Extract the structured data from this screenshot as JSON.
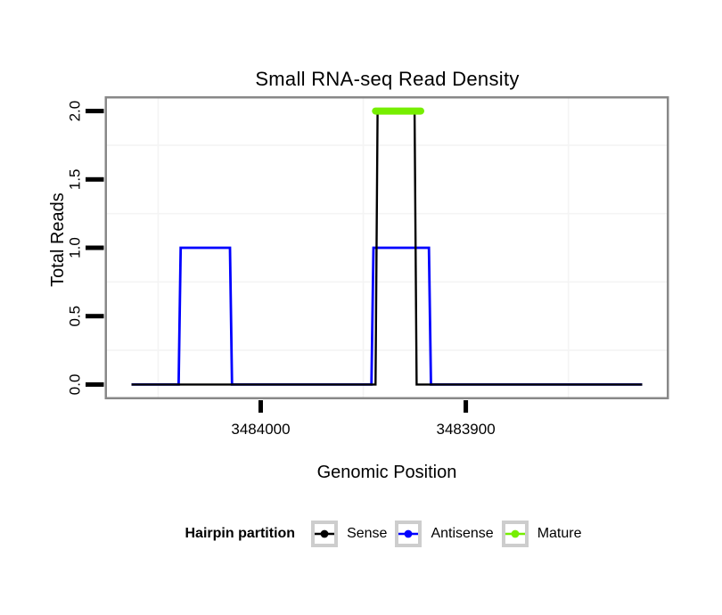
{
  "chart_data": {
    "type": "line",
    "title": "Small RNA-seq Read Density",
    "xlabel": "Genomic Position",
    "ylabel": "Total Reads",
    "x_axis": {
      "reversed": true,
      "domain_left_to_right": [
        3484075.5,
        3483801.5
      ],
      "data_range": [
        3484063,
        3483814
      ],
      "ticks": [
        3484000,
        3483900
      ],
      "tick_labels": [
        "3484000",
        "3483900"
      ],
      "minor_gridlines": [
        3484050,
        3483950,
        3483850
      ]
    },
    "y_axis": {
      "domain": [
        -0.1,
        2.1
      ],
      "ticks": [
        0.0,
        0.5,
        1.0,
        1.5,
        2.0
      ],
      "tick_labels": [
        "0.0",
        "0.5",
        "1.0",
        "1.5",
        "2.0"
      ],
      "minor_gridlines": [
        0.25,
        0.75,
        1.25,
        1.75
      ]
    },
    "legend": {
      "title": "Hairpin partition",
      "position": "bottom",
      "items": [
        {
          "label": "Sense",
          "color": "#000000"
        },
        {
          "label": "Antisense",
          "color": "#0000FF"
        },
        {
          "label": "Mature",
          "color": "#76EE00"
        }
      ]
    },
    "series": [
      {
        "name": "Antisense",
        "color": "#0000FF",
        "width": 2.8,
        "points": [
          [
            3484063,
            0
          ],
          [
            3484040,
            0
          ],
          [
            3484039,
            1
          ],
          [
            3484015,
            1
          ],
          [
            3484014,
            0
          ],
          [
            3483946,
            0
          ],
          [
            3483945,
            1
          ],
          [
            3483918,
            1
          ],
          [
            3483917,
            0
          ],
          [
            3483814,
            0
          ]
        ]
      },
      {
        "name": "Sense",
        "color": "#000000",
        "width": 2.4,
        "points": [
          [
            3484063,
            0
          ],
          [
            3483944,
            0
          ],
          [
            3483943,
            2
          ],
          [
            3483925,
            2
          ],
          [
            3483924,
            0
          ],
          [
            3483814,
            0
          ]
        ]
      },
      {
        "name": "Mature",
        "color": "#76EE00",
        "width": 8,
        "linecap": "round",
        "points": [
          [
            3483944,
            2
          ],
          [
            3483922,
            2
          ]
        ]
      }
    ],
    "colors": {
      "grid_minor": "#f4f4f4",
      "panel_border": "#888888",
      "legend_key_border": "#cdcdcd",
      "tick": "#000000"
    }
  }
}
